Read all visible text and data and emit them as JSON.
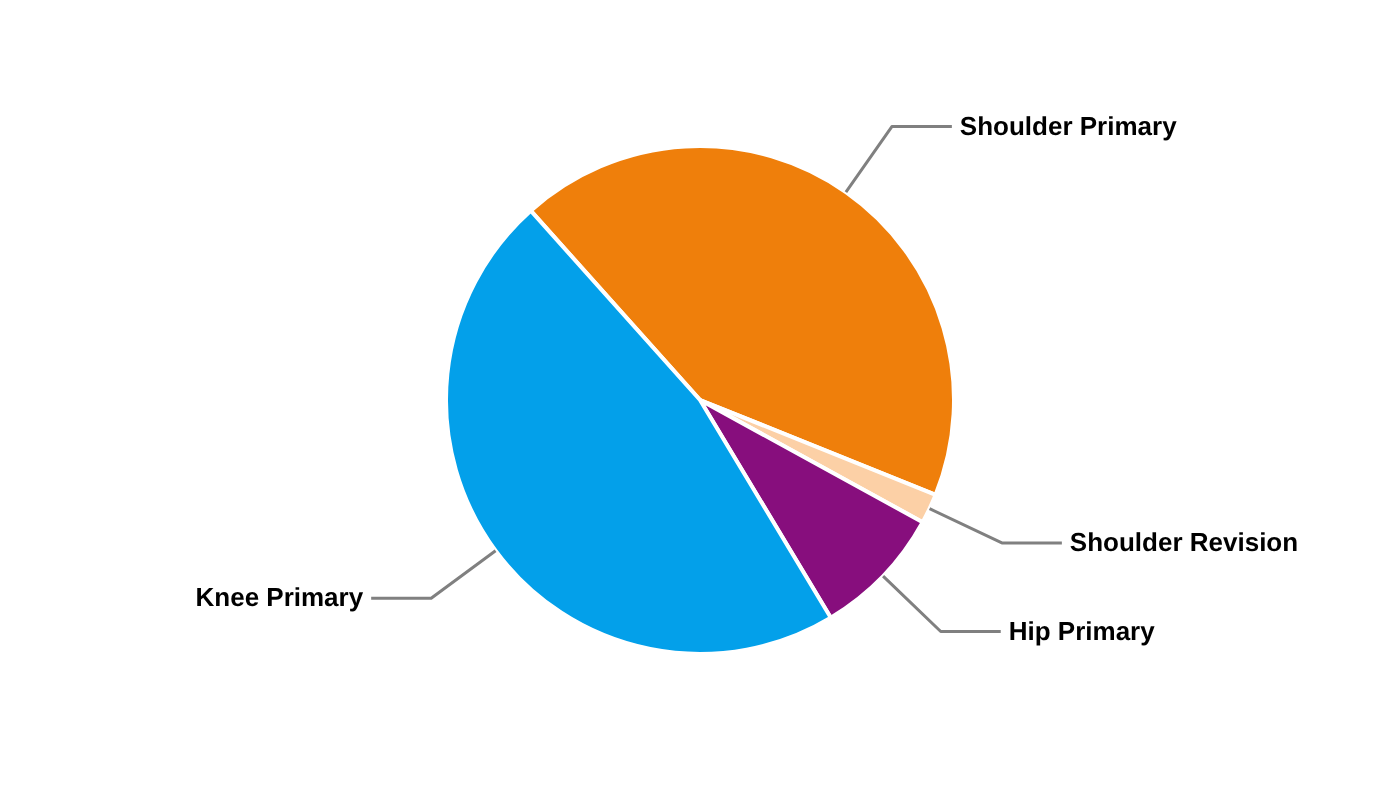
{
  "chart_data": {
    "type": "pie",
    "categories": [
      "Shoulder Primary",
      "Shoulder Revision",
      "Hip Primary",
      "Knee Primary"
    ],
    "values": [
      42.7,
      1.9,
      8.4,
      47.0
    ],
    "colors": [
      "#ef7f0b",
      "#fcd0a6",
      "#870e7d",
      "#03a0ea"
    ]
  }
}
